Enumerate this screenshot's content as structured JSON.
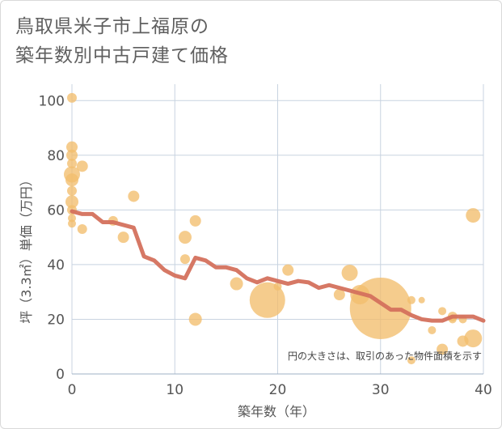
{
  "chart_data": {
    "type": "scatter",
    "title_lines": [
      "鳥取県米子市上福原の",
      "築年数別中古戸建て価格"
    ],
    "xlabel": "築年数（年）",
    "ylabel": "坪（3.3㎡）単価（万円）",
    "xlim": [
      0,
      40
    ],
    "ylim": [
      0,
      106
    ],
    "xticks": [
      0,
      10,
      20,
      30,
      40
    ],
    "yticks": [
      0,
      20,
      40,
      60,
      80,
      100
    ],
    "grid": true,
    "annotation": "円の大きさは、取引のあった物件面積を示す",
    "colors": {
      "bubble": "#f2be6d",
      "line": "#d4715d",
      "grid": "#c8d3e0"
    },
    "bubbles": [
      {
        "x": 0,
        "y": 101,
        "size": 6
      },
      {
        "x": 0,
        "y": 83,
        "size": 7
      },
      {
        "x": 0,
        "y": 80,
        "size": 7
      },
      {
        "x": 0,
        "y": 77,
        "size": 6
      },
      {
        "x": 0,
        "y": 73,
        "size": 10
      },
      {
        "x": 0,
        "y": 71,
        "size": 8
      },
      {
        "x": 0,
        "y": 67,
        "size": 6
      },
      {
        "x": 0,
        "y": 63,
        "size": 8
      },
      {
        "x": 0,
        "y": 60,
        "size": 6
      },
      {
        "x": 0,
        "y": 57,
        "size": 5
      },
      {
        "x": 0,
        "y": 55,
        "size": 5
      },
      {
        "x": 1,
        "y": 76,
        "size": 7
      },
      {
        "x": 1,
        "y": 53,
        "size": 6
      },
      {
        "x": 4,
        "y": 56,
        "size": 6
      },
      {
        "x": 5,
        "y": 50,
        "size": 7
      },
      {
        "x": 6,
        "y": 65,
        "size": 7
      },
      {
        "x": 11,
        "y": 50,
        "size": 8
      },
      {
        "x": 11,
        "y": 42,
        "size": 6
      },
      {
        "x": 12,
        "y": 56,
        "size": 7
      },
      {
        "x": 12,
        "y": 20,
        "size": 8
      },
      {
        "x": 16,
        "y": 33,
        "size": 8
      },
      {
        "x": 19,
        "y": 27,
        "size": 22
      },
      {
        "x": 20,
        "y": 32,
        "size": 5
      },
      {
        "x": 21,
        "y": 38,
        "size": 7
      },
      {
        "x": 26,
        "y": 29,
        "size": 7
      },
      {
        "x": 27,
        "y": 37,
        "size": 10
      },
      {
        "x": 28,
        "y": 29,
        "size": 12
      },
      {
        "x": 30,
        "y": 24,
        "size": 38
      },
      {
        "x": 33,
        "y": 27,
        "size": 5
      },
      {
        "x": 33,
        "y": 5,
        "size": 5
      },
      {
        "x": 34,
        "y": 27,
        "size": 4
      },
      {
        "x": 35,
        "y": 16,
        "size": 5
      },
      {
        "x": 36,
        "y": 23,
        "size": 5
      },
      {
        "x": 36,
        "y": 9,
        "size": 7
      },
      {
        "x": 37,
        "y": 21,
        "size": 6
      },
      {
        "x": 37,
        "y": 20,
        "size": 5
      },
      {
        "x": 38,
        "y": 20,
        "size": 5
      },
      {
        "x": 38,
        "y": 12,
        "size": 7
      },
      {
        "x": 39,
        "y": 58,
        "size": 9
      },
      {
        "x": 39,
        "y": 13,
        "size": 11
      }
    ],
    "trend": {
      "x": [
        0,
        1,
        2,
        3,
        4,
        5,
        6,
        7,
        8,
        9,
        10,
        11,
        12,
        13,
        14,
        15,
        16,
        17,
        18,
        19,
        20,
        21,
        22,
        23,
        24,
        25,
        26,
        27,
        28,
        29,
        30,
        31,
        32,
        33,
        34,
        35,
        36,
        37,
        38,
        39,
        40
      ],
      "y": [
        59.5,
        58.5,
        58.5,
        55.5,
        55.5,
        54.5,
        53.5,
        43,
        41.5,
        38,
        36,
        35,
        42.5,
        41.5,
        39,
        39,
        38,
        35,
        33.5,
        35,
        34,
        33,
        34,
        33.5,
        31.5,
        32.5,
        31.5,
        30.5,
        29.5,
        28.5,
        26,
        23.5,
        23.5,
        21.5,
        20,
        19.5,
        19.5,
        21,
        21,
        21,
        19.5
      ]
    }
  }
}
